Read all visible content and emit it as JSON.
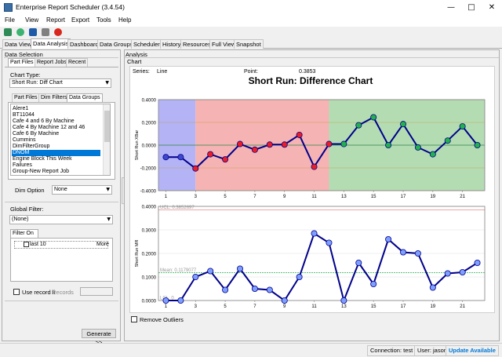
{
  "window": {
    "title": "Enterprise Report Scheduler (3.4.54)"
  },
  "menu": [
    "File",
    "View",
    "Report",
    "Export",
    "Tools",
    "Help"
  ],
  "toolbar_icons": [
    "refresh-icon",
    "sync-icon",
    "pause-icon",
    "tools-icon",
    "stop-icon"
  ],
  "tabs": [
    "Data View",
    "Data Analysis",
    "Dashboard",
    "Data Groups",
    "Scheduler",
    "History",
    "Resources",
    "Full View",
    "Snapshot"
  ],
  "active_tab": "Data Analysis",
  "left": {
    "group_title": "Data Selection",
    "top_tabs": [
      "Part Files",
      "Report Jobs",
      "Recent"
    ],
    "chart_type_label": "Chart Type:",
    "chart_type_value": "Short Run: Diff Chart",
    "sub_tabs": [
      "Part Files",
      "Dim Filters",
      "Data Groups"
    ],
    "groups": [
      "Alere1",
      "BT11044",
      "Cafe 4 and 6 By Machine",
      "Cafe 4 By Machine 12 and 46",
      "Cafe 6 By Machine",
      "Cummins",
      "DimFilterGroup",
      "DNOM",
      "Engine Block This Week",
      "Failures",
      "Group-New Report Job"
    ],
    "selected_group": "DNOM",
    "dim_option_label": "Dim Option",
    "dim_option_value": "None",
    "global_filter_label": "Global Filter:",
    "global_filter_value": "(None)",
    "filter_on_label": "Filter On",
    "filter_item": "last 10",
    "more_label": "More",
    "use_record_label": "Use record li",
    "records_label": "Records",
    "generate_label": "Generate >>"
  },
  "right": {
    "analysis_label": "Analysis",
    "chart_label": "Chart",
    "series_label": "Series:",
    "series_value": "Line",
    "point_label": "Point:",
    "point_value": "0.3853",
    "remove_outliers_label": "Remove Outliers"
  },
  "status": {
    "connection": "Connection: test",
    "user": "User: jason",
    "update": "Update Available"
  },
  "colors": {
    "zone_blue": "#b3b3f5",
    "zone_red": "#f5b3b3",
    "zone_green": "#b3dcb3",
    "line": "#00008b",
    "point_blue": "#3f48cc",
    "point_red": "#ee1c24",
    "point_green": "#22b14c",
    "point_mr": "#7f9fff",
    "accent": "#0078d7"
  },
  "chart_data": [
    {
      "type": "line",
      "title": "Short Run: Difference Chart",
      "ylabel": "Short Run XBar",
      "x": [
        1,
        2,
        3,
        4,
        5,
        6,
        7,
        8,
        9,
        10,
        11,
        12,
        13,
        14,
        15,
        16,
        17,
        18,
        19,
        20,
        21,
        22
      ],
      "xtick_labels": [
        "1",
        "3",
        "5",
        "7",
        "9",
        "11",
        "13",
        "15",
        "17",
        "19",
        "21"
      ],
      "ytick_labels": [
        "0.4000",
        "0.2000",
        "0.0000",
        "-0.2000",
        "-0.4000"
      ],
      "ylim": [
        -0.4,
        0.4
      ],
      "values": [
        -0.105,
        -0.105,
        -0.205,
        -0.08,
        -0.125,
        0.01,
        -0.04,
        0.005,
        0.005,
        0.09,
        -0.19,
        0.01,
        0.01,
        0.175,
        0.245,
        0.0,
        0.185,
        -0.02,
        -0.08,
        0.04,
        0.165,
        0.0
      ],
      "zones": [
        {
          "from": 1,
          "to": 3,
          "color": "blue"
        },
        {
          "from": 3,
          "to": 12,
          "color": "red"
        },
        {
          "from": 12,
          "to": 22,
          "color": "green"
        }
      ],
      "point_colors": [
        "blue",
        "blue",
        "red",
        "red",
        "red",
        "red",
        "red",
        "red",
        "red",
        "red",
        "red",
        "red",
        "green",
        "green",
        "green",
        "green",
        "green",
        "green",
        "green",
        "green",
        "green",
        "green"
      ]
    },
    {
      "type": "line",
      "ylabel": "Short Run MR",
      "x": [
        1,
        2,
        3,
        4,
        5,
        6,
        7,
        8,
        9,
        10,
        11,
        12,
        13,
        14,
        15,
        16,
        17,
        18,
        19,
        20,
        21,
        22
      ],
      "xtick_labels": [
        "1",
        "3",
        "5",
        "7",
        "9",
        "11",
        "13",
        "15",
        "17",
        "19",
        "21"
      ],
      "ytick_labels": [
        "0.4000",
        "0.3000",
        "0.2000",
        "0.1000",
        "0.0000"
      ],
      "ylim": [
        0,
        0.4
      ],
      "values": [
        0.0,
        0.0,
        0.1,
        0.125,
        0.045,
        0.135,
        0.05,
        0.045,
        0.0,
        0.1,
        0.285,
        0.245,
        0.0,
        0.16,
        0.07,
        0.26,
        0.205,
        0.2,
        0.055,
        0.115,
        0.12,
        0.16
      ],
      "ucl": {
        "label": "UCL: 0.3852697",
        "value": 0.3853
      },
      "mean": {
        "label": "Mean: 0.1179077",
        "value": 0.1179
      },
      "lcl": {
        "label": "LCL: 0",
        "value": 0
      }
    }
  ]
}
